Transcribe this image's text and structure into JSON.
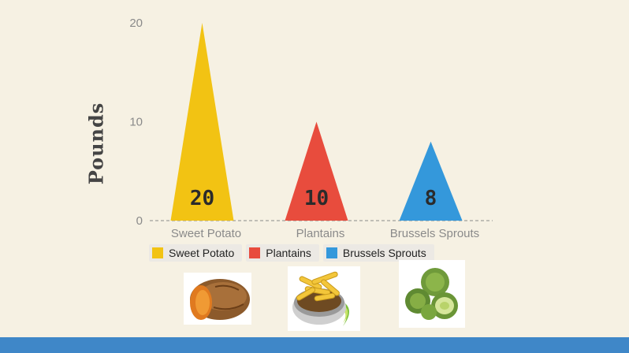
{
  "chart_data": {
    "type": "bar",
    "categories": [
      "Sweet Potato",
      "Plantains",
      "Brussels Sprouts"
    ],
    "values": [
      20,
      10,
      8
    ],
    "data_labels": [
      "20",
      "10",
      "8"
    ],
    "colors": [
      "#f2c313",
      "#e84c3d",
      "#3498db"
    ],
    "ylabel": "Pounds",
    "ylim": [
      0,
      20
    ],
    "yticks": [
      "0",
      "10",
      "20"
    ],
    "legend": [
      {
        "label": "Sweet Potato",
        "color": "#f2c313"
      },
      {
        "label": "Plantains",
        "color": "#e84c3d"
      },
      {
        "label": "Brussels Sprouts",
        "color": "#3498db"
      }
    ],
    "legend_position": "bottom-left",
    "grid": false,
    "bar_shape": "triangle"
  },
  "images": [
    "sweet-potato-photo",
    "plantain-chips-photo",
    "brussels-sprouts-photo"
  ],
  "accent_bar_color": "#3f87c8"
}
